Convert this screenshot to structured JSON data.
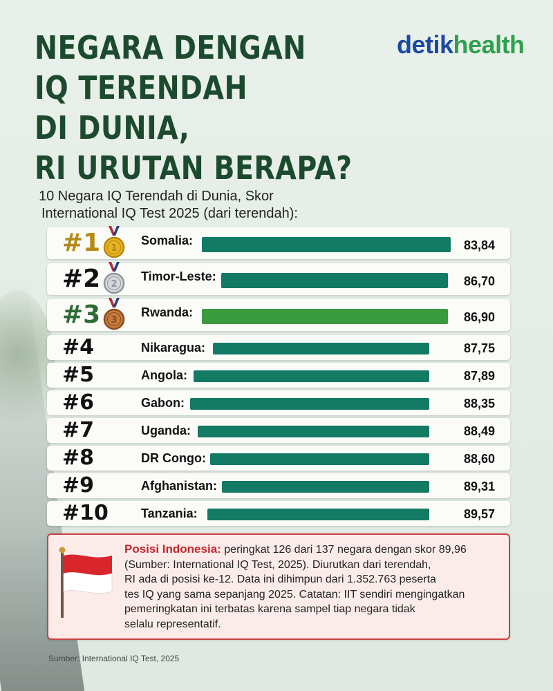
{
  "title_lines": [
    "NEGARA DENGAN",
    "IQ TERENDAH",
    "DI DUNIA,",
    "RI URUTAN BERAPA?"
  ],
  "brand": {
    "part1": "detik",
    "part2": "health",
    "color1": "#1d4aa0",
    "color2": "#2fa14d"
  },
  "subtitle_lines": [
    "10 Negara IQ Terendah di Dunia, Skor",
    "International IQ Test 2025 (dari terendah):"
  ],
  "chart_data": {
    "type": "bar",
    "orientation": "horizontal",
    "categories": [
      "Somalia",
      "Timor-Leste",
      "Rwanda",
      "Nikaragua",
      "Angola",
      "Gabon",
      "Uganda",
      "DR Congo",
      "Afghanistan",
      "Tanzania"
    ],
    "ranks": [
      "#1",
      "#2",
      "#3",
      "#4",
      "#5",
      "#6",
      "#7",
      "#8",
      "#9",
      "#10"
    ],
    "values": [
      83.84,
      86.7,
      86.9,
      87.75,
      87.89,
      88.35,
      88.49,
      88.6,
      89.31,
      89.57
    ],
    "value_labels": [
      "83,84",
      "86,70",
      "86,90",
      "87,75",
      "87,89",
      "88,35",
      "88,49",
      "88,60",
      "89,31",
      "89,57"
    ],
    "medals": [
      "gold",
      "silver",
      "bronze"
    ],
    "bar_color": "#137a64",
    "highlight_color": "#3a9a3e",
    "highlight_index": 2
  },
  "note": {
    "lead": "Posisi Indonesia:",
    "lines": [
      "peringkat 126 dari 137 negara dengan skor 89,96",
      "(Sumber: International IQ Test, 2025). Diurutkan dari terendah,",
      "RI ada di posisi ke-12. Data ini dihimpun dari 1.352.763 peserta",
      "tes IQ yang sama sepanjang 2025. Catatan: IIT sendiri mengingatkan",
      "pemeringkatan ini terbatas karena sampel tiap negara tidak",
      "selalu representatif."
    ],
    "border_color": "#c9423f",
    "lead_color": "#c0282d"
  },
  "source": "Sumber: International IQ Test, 2025"
}
